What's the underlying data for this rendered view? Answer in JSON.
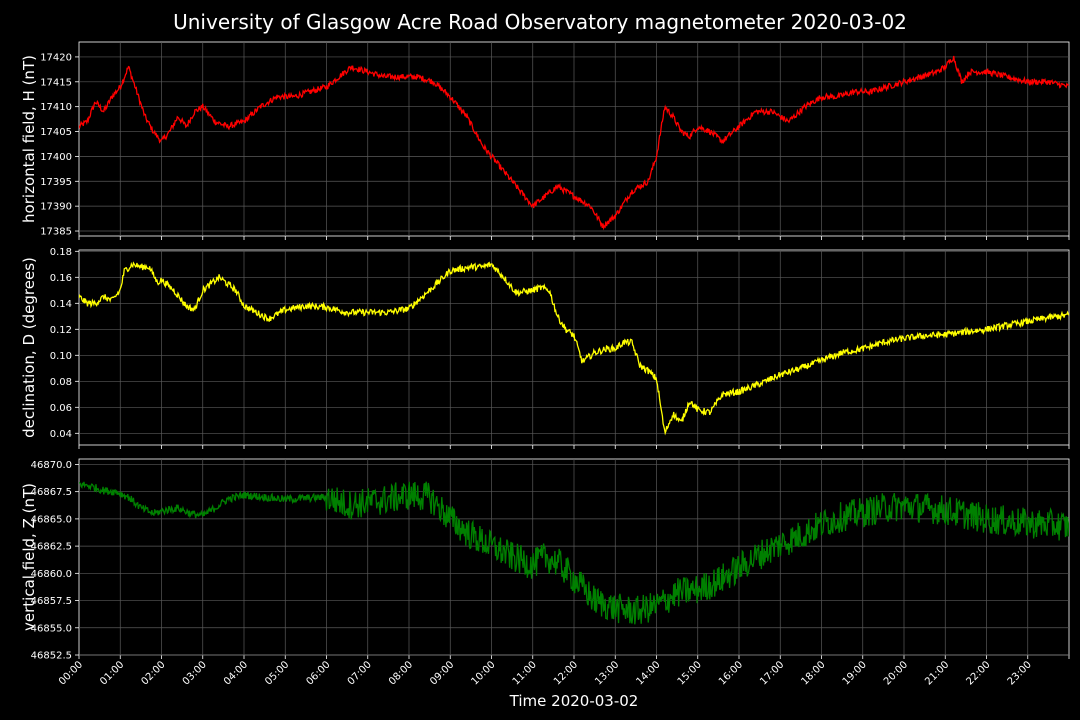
{
  "title": "University of Glasgow Acre Road Observatory magnetometer 2020-03-02",
  "colors": {
    "background": "#000000",
    "text": "#ffffff",
    "grid": "#5a5a5a",
    "series_h": "#ff0000",
    "series_d": "#ffff00",
    "series_z": "#008000"
  },
  "xaxis": {
    "label": "Time 2020-03-02",
    "range_hours": [
      0,
      24
    ],
    "tick_labels": [
      "00:00",
      "01:00",
      "02:00",
      "03:00",
      "04:00",
      "05:00",
      "06:00",
      "07:00",
      "08:00",
      "09:00",
      "10:00",
      "11:00",
      "12:00",
      "13:00",
      "14:00",
      "15:00",
      "16:00",
      "17:00",
      "18:00",
      "19:00",
      "20:00",
      "21:00",
      "22:00",
      "23:00"
    ]
  },
  "chart_data": [
    {
      "type": "line",
      "ylabel": "horizontal field, H (nT)",
      "ylim": [
        17384,
        17423
      ],
      "yticks": [
        17385,
        17390,
        17395,
        17400,
        17405,
        17410,
        17415,
        17420
      ],
      "ytick_labels": [
        "17385",
        "17390",
        "17395",
        "17400",
        "17405",
        "17410",
        "17415",
        "17420"
      ],
      "grid": true,
      "series": [
        {
          "color": "#ff0000",
          "noise": 0.6,
          "x": [
            0,
            0.2,
            0.4,
            0.6,
            0.8,
            1.0,
            1.2,
            1.4,
            1.6,
            1.8,
            2.0,
            2.2,
            2.4,
            2.6,
            2.8,
            3.0,
            3.3,
            3.6,
            4.0,
            4.4,
            4.8,
            5.2,
            5.6,
            6.0,
            6.3,
            6.6,
            7.0,
            7.4,
            7.8,
            8.2,
            8.6,
            9.0,
            9.4,
            9.8,
            10.2,
            10.6,
            11.0,
            11.3,
            11.6,
            12.0,
            12.4,
            12.7,
            13.0,
            13.4,
            13.8,
            14.0,
            14.2,
            14.4,
            14.6,
            14.8,
            15.0,
            15.3,
            15.6,
            16.0,
            16.4,
            16.8,
            17.2,
            17.6,
            18.0,
            18.4,
            18.8,
            19.2,
            19.6,
            20.0,
            20.4,
            20.8,
            21.0,
            21.2,
            21.4,
            21.6,
            22.0,
            22.5,
            23.0,
            23.5,
            24.0
          ],
          "y": [
            17406,
            17407,
            17411,
            17409,
            17412,
            17414,
            17418,
            17413,
            17408,
            17405,
            17403,
            17405,
            17408,
            17406,
            17409,
            17410,
            17407,
            17406,
            17407,
            17410,
            17412,
            17412,
            17413,
            17414,
            17416,
            17418,
            17417,
            17416,
            17416,
            17416,
            17415,
            17412,
            17408,
            17402,
            17398,
            17394,
            17390,
            17392,
            17394,
            17392,
            17390,
            17386,
            17388,
            17393,
            17395,
            17400,
            17410,
            17408,
            17405,
            17404,
            17406,
            17405,
            17403,
            17406,
            17409,
            17409,
            17407,
            17410,
            17412,
            17412,
            17413,
            17413,
            17414,
            17415,
            17416,
            17417,
            17418,
            17420,
            17415,
            17417,
            17417,
            17416,
            17415,
            17415,
            17414
          ]
        }
      ]
    },
    {
      "type": "line",
      "ylabel": "declination, D (degrees)",
      "ylim": [
        0.031,
        0.181
      ],
      "yticks": [
        0.04,
        0.06,
        0.08,
        0.1,
        0.12,
        0.14,
        0.16,
        0.18
      ],
      "ytick_labels": [
        "0.04",
        "0.06",
        "0.08",
        "0.10",
        "0.12",
        "0.14",
        "0.16",
        "0.18"
      ],
      "grid": true,
      "series": [
        {
          "color": "#ffff00",
          "noise": 0.0025,
          "x": [
            0,
            0.2,
            0.4,
            0.6,
            0.8,
            1.0,
            1.1,
            1.3,
            1.5,
            1.7,
            1.9,
            2.0,
            2.3,
            2.6,
            2.8,
            3.0,
            3.2,
            3.4,
            3.6,
            3.8,
            4.0,
            4.3,
            4.6,
            5.0,
            5.5,
            6.0,
            6.5,
            7.0,
            7.5,
            8.0,
            8.5,
            9.0,
            9.5,
            9.8,
            10.0,
            10.3,
            10.6,
            11.0,
            11.2,
            11.4,
            11.6,
            11.8,
            12.0,
            12.2,
            12.5,
            12.8,
            13.0,
            13.2,
            13.4,
            13.6,
            13.8,
            14.0,
            14.2,
            14.4,
            14.6,
            14.8,
            15.0,
            15.3,
            15.6,
            16.0,
            16.5,
            17.0,
            17.5,
            18.0,
            18.5,
            19.0,
            19.5,
            20.0,
            20.5,
            21.0,
            21.5,
            22.0,
            22.5,
            23.0,
            23.5,
            24.0
          ],
          "y": [
            0.145,
            0.14,
            0.14,
            0.145,
            0.142,
            0.15,
            0.165,
            0.17,
            0.168,
            0.168,
            0.156,
            0.158,
            0.15,
            0.138,
            0.135,
            0.15,
            0.155,
            0.16,
            0.155,
            0.15,
            0.138,
            0.133,
            0.128,
            0.135,
            0.138,
            0.137,
            0.133,
            0.133,
            0.133,
            0.136,
            0.15,
            0.165,
            0.168,
            0.168,
            0.17,
            0.16,
            0.148,
            0.15,
            0.152,
            0.15,
            0.13,
            0.12,
            0.115,
            0.095,
            0.102,
            0.105,
            0.105,
            0.11,
            0.11,
            0.092,
            0.088,
            0.082,
            0.04,
            0.055,
            0.048,
            0.065,
            0.058,
            0.056,
            0.07,
            0.072,
            0.078,
            0.085,
            0.09,
            0.096,
            0.102,
            0.105,
            0.11,
            0.113,
            0.115,
            0.116,
            0.118,
            0.12,
            0.123,
            0.126,
            0.129,
            0.131
          ]
        }
      ]
    },
    {
      "type": "line",
      "ylabel": "vertical field, Z (nT)",
      "ylim": [
        46852.5,
        46870.5
      ],
      "yticks": [
        46852.5,
        46855.0,
        46857.5,
        46860.0,
        46862.5,
        46865.0,
        46867.5,
        46870.0
      ],
      "ytick_labels": [
        "46852.5",
        "46855.0",
        "46857.5",
        "46860.0",
        "46862.5",
        "46865.0",
        "46867.5",
        "46870.0"
      ],
      "grid": true,
      "series": [
        {
          "color": "#008000",
          "noise": 1.4,
          "x": [
            0,
            0.3,
            0.6,
            0.9,
            1.2,
            1.5,
            1.8,
            2.1,
            2.4,
            2.7,
            3.0,
            3.3,
            3.6,
            4.0,
            4.5,
            5.0,
            5.5,
            6.0,
            6.5,
            7.0,
            7.5,
            8.0,
            8.5,
            9.0,
            9.5,
            10.0,
            10.5,
            11.0,
            11.3,
            11.6,
            12.0,
            12.5,
            13.0,
            13.5,
            14.0,
            14.5,
            15.0,
            15.5,
            16.0,
            16.5,
            17.0,
            17.5,
            18.0,
            18.5,
            19.0,
            19.5,
            20.0,
            20.5,
            21.0,
            21.5,
            22.0,
            22.5,
            23.0,
            23.5,
            24.0
          ],
          "y": [
            46868.2,
            46868.0,
            46867.6,
            46867.5,
            46867.0,
            46866.0,
            46865.5,
            46865.8,
            46866.0,
            46865.5,
            46865.3,
            46866.0,
            46866.8,
            46867.2,
            46867.0,
            46866.8,
            46866.9,
            46867.0,
            46866.3,
            46866.5,
            46866.8,
            46867.2,
            46867.0,
            46865.0,
            46863.5,
            46862.5,
            46861.5,
            46860.8,
            46861.5,
            46861.0,
            46859.5,
            46857.5,
            46856.8,
            46856.5,
            46857.0,
            46858.2,
            46858.5,
            46859.3,
            46860.5,
            46861.7,
            46862.7,
            46863.5,
            46864.5,
            46865.2,
            46865.6,
            46866.0,
            46866.2,
            46866.0,
            46865.8,
            46865.4,
            46865.0,
            46864.8,
            46864.6,
            46864.5,
            46864.3
          ]
        }
      ]
    }
  ]
}
